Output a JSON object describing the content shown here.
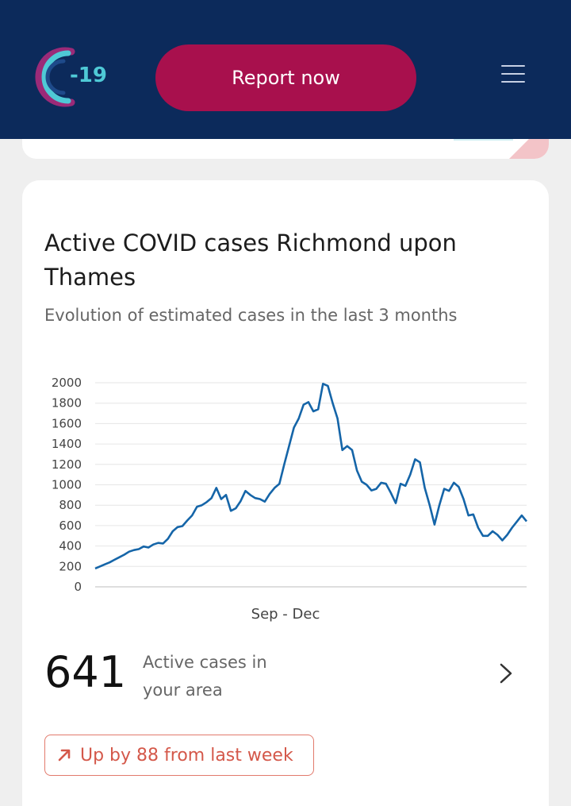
{
  "header": {
    "logo_text": "-19",
    "report_button_label": "Report now"
  },
  "card": {
    "title": "Active COVID cases Richmond upon Thames",
    "subtitle": "Evolution of estimated cases in the last 3 months",
    "active_count": "641",
    "active_label": "Active cases in your area",
    "trend_label": "Up by 88 from last week"
  },
  "colors": {
    "header_bg": "#0c2a5b",
    "accent": "#a8104d",
    "line": "#1565a8",
    "trend": "#d4584a"
  },
  "chart_data": {
    "type": "line",
    "xlabel": "Sep - Dec",
    "ylabel": "",
    "ylim": [
      0,
      2000
    ],
    "yticks": [
      0,
      200,
      400,
      600,
      800,
      1000,
      1200,
      1400,
      1600,
      1800,
      2000
    ],
    "grid": true,
    "series": [
      {
        "values": [
          180,
          200,
          220,
          240,
          265,
          290,
          315,
          345,
          360,
          370,
          395,
          385,
          415,
          430,
          425,
          470,
          545,
          585,
          595,
          650,
          700,
          785,
          800,
          830,
          870,
          970,
          860,
          900,
          745,
          770,
          840,
          940,
          900,
          870,
          860,
          835,
          910,
          970,
          1010,
          1200,
          1380,
          1560,
          1650,
          1785,
          1810,
          1720,
          1740,
          1990,
          1970,
          1800,
          1650,
          1340,
          1380,
          1340,
          1140,
          1030,
          1000,
          945,
          960,
          1020,
          1010,
          920,
          820,
          1010,
          990,
          1100,
          1250,
          1220,
          970,
          800,
          610,
          800,
          960,
          940,
          1020,
          980,
          860,
          700,
          710,
          580,
          500,
          500,
          545,
          510,
          455,
          510,
          580,
          640,
          700,
          641
        ]
      }
    ]
  }
}
